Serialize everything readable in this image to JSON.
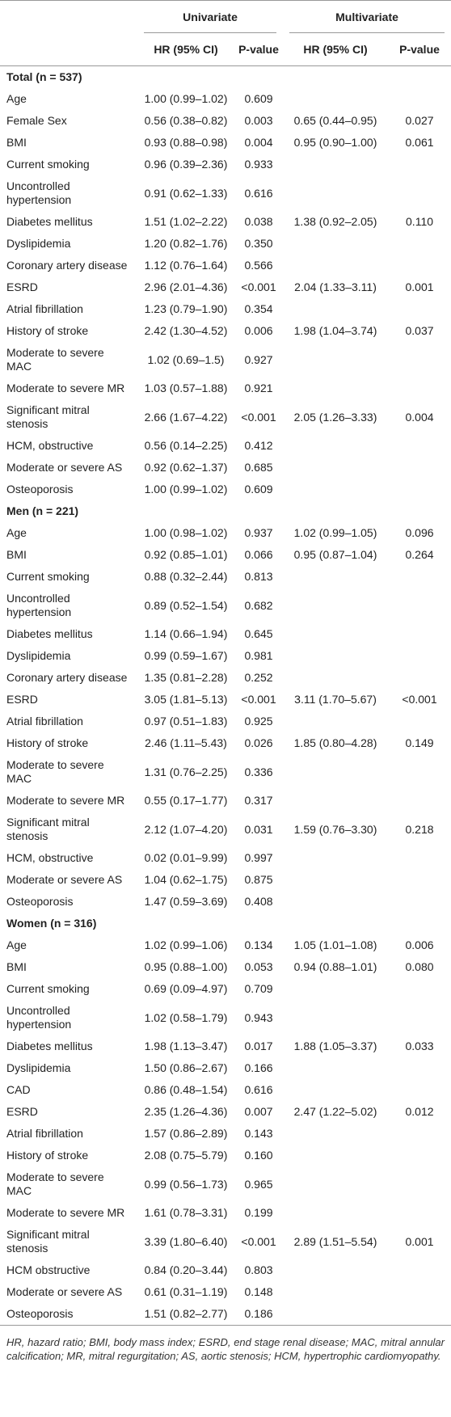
{
  "header": {
    "univariate": "Univariate",
    "multivariate": "Multivariate",
    "columns": [
      "HR (95% CI)",
      "P-value",
      "HR (95% CI)",
      "P-value"
    ]
  },
  "table": {
    "sections": [
      {
        "title": "Total (n = 537)",
        "rows": [
          [
            "Age",
            "1.00 (0.99–1.02)",
            "0.609"
          ],
          [
            "Female Sex",
            "0.56 (0.38–0.82)",
            "0.003",
            "0.65 (0.44–0.95)",
            "0.027"
          ],
          [
            "BMI",
            "0.93 (0.88–0.98)",
            "0.004",
            "0.95 (0.90–1.00)",
            "0.061"
          ],
          [
            "Current smoking",
            "0.96 (0.39–2.36)",
            "0.933"
          ],
          [
            "Uncontrolled hypertension",
            "0.91 (0.62–1.33)",
            "0.616"
          ],
          [
            "Diabetes mellitus",
            "1.51 (1.02–2.22)",
            "0.038",
            "1.38 (0.92–2.05)",
            "0.110"
          ],
          [
            "Dyslipidemia",
            "1.20 (0.82–1.76)",
            "0.350"
          ],
          [
            "Coronary artery disease",
            "1.12 (0.76–1.64)",
            "0.566"
          ],
          [
            "ESRD",
            "2.96 (2.01–4.36)",
            "<0.001",
            "2.04 (1.33–3.11)",
            "0.001"
          ],
          [
            "Atrial fibrillation",
            "1.23 (0.79–1.90)",
            "0.354"
          ],
          [
            "History of stroke",
            "2.42 (1.30–4.52)",
            "0.006",
            "1.98 (1.04–3.74)",
            "0.037"
          ],
          [
            "Moderate to severe MAC",
            "1.02 (0.69–1.5)",
            "0.927"
          ],
          [
            "Moderate to severe MR",
            "1.03 (0.57–1.88)",
            "0.921"
          ],
          [
            "Significant mitral stenosis",
            "2.66 (1.67–4.22)",
            "<0.001",
            "2.05 (1.26–3.33)",
            "0.004"
          ],
          [
            "HCM, obstructive",
            "0.56 (0.14–2.25)",
            "0.412"
          ],
          [
            "Moderate or severe AS",
            "0.92 (0.62–1.37)",
            "0.685"
          ],
          [
            "Osteoporosis",
            "1.00 (0.99–1.02)",
            "0.609"
          ]
        ]
      },
      {
        "title": "Men (n = 221)",
        "rows": [
          [
            "Age",
            "1.00 (0.98–1.02)",
            "0.937",
            "1.02 (0.99–1.05)",
            "0.096"
          ],
          [
            "BMI",
            "0.92 (0.85–1.01)",
            "0.066",
            "0.95 (0.87–1.04)",
            "0.264"
          ],
          [
            "Current smoking",
            "0.88 (0.32–2.44)",
            "0.813"
          ],
          [
            "Uncontrolled hypertension",
            "0.89 (0.52–1.54)",
            "0.682"
          ],
          [
            "Diabetes mellitus",
            "1.14 (0.66–1.94)",
            "0.645"
          ],
          [
            "Dyslipidemia",
            "0.99 (0.59–1.67)",
            "0.981"
          ],
          [
            "Coronary artery disease",
            "1.35 (0.81–2.28)",
            "0.252"
          ],
          [
            "ESRD",
            "3.05 (1.81–5.13)",
            "<0.001",
            "3.11 (1.70–5.67)",
            "<0.001"
          ],
          [
            "Atrial fibrillation",
            "0.97 (0.51–1.83)",
            "0.925"
          ],
          [
            "History of stroke",
            "2.46 (1.11–5.43)",
            "0.026",
            "1.85 (0.80–4.28)",
            "0.149"
          ],
          [
            "Moderate to severe MAC",
            "1.31 (0.76–2.25)",
            "0.336"
          ],
          [
            "Moderate to severe MR",
            "0.55 (0.17–1.77)",
            "0.317"
          ],
          [
            "Significant mitral stenosis",
            "2.12 (1.07–4.20)",
            "0.031",
            "1.59 (0.76–3.30)",
            "0.218"
          ],
          [
            "HCM, obstructive",
            "0.02 (0.01–9.99)",
            "0.997"
          ],
          [
            "Moderate or severe AS",
            "1.04 (0.62–1.75)",
            "0.875"
          ],
          [
            "Osteoporosis",
            "1.47 (0.59–3.69)",
            "0.408"
          ]
        ]
      },
      {
        "title": "Women (n = 316)",
        "rows": [
          [
            "Age",
            "1.02 (0.99–1.06)",
            "0.134",
            "1.05 (1.01–1.08)",
            "0.006"
          ],
          [
            "BMI",
            "0.95 (0.88–1.00)",
            "0.053",
            "0.94 (0.88–1.01)",
            "0.080"
          ],
          [
            "Current smoking",
            "0.69 (0.09–4.97)",
            "0.709"
          ],
          [
            "Uncontrolled hypertension",
            "1.02 (0.58–1.79)",
            "0.943"
          ],
          [
            "Diabetes mellitus",
            "1.98 (1.13–3.47)",
            "0.017",
            "1.88 (1.05–3.37)",
            "0.033"
          ],
          [
            "Dyslipidemia",
            "1.50 (0.86–2.67)",
            "0.166"
          ],
          [
            "CAD",
            "0.86 (0.48–1.54)",
            "0.616"
          ],
          [
            "ESRD",
            "2.35 (1.26–4.36)",
            "0.007",
            "2.47 (1.22–5.02)",
            "0.012"
          ],
          [
            "Atrial fibrillation",
            "1.57 (0.86–2.89)",
            "0.143"
          ],
          [
            "History of stroke",
            "2.08 (0.75–5.79)",
            "0.160"
          ],
          [
            "Moderate to severe MAC",
            "0.99 (0.56–1.73)",
            "0.965"
          ],
          [
            "Moderate to severe MR",
            "1.61 (0.78–3.31)",
            "0.199"
          ],
          [
            "Significant mitral stenosis",
            "3.39 (1.80–6.40)",
            "<0.001",
            "2.89 (1.51–5.54)",
            "0.001"
          ],
          [
            "HCM obstructive",
            "0.84 (0.20–3.44)",
            "0.803"
          ],
          [
            "Moderate or severe AS",
            "0.61 (0.31–1.19)",
            "0.148"
          ],
          [
            "Osteoporosis",
            "1.51 (0.82–2.77)",
            "0.186"
          ]
        ]
      }
    ]
  },
  "footnote": "HR, hazard ratio; BMI, body mass index; ESRD, end stage renal disease; MAC, mitral annular calcification; MR, mitral regurgitation; AS, aortic stenosis; HCM, hypertrophic cardiomyopathy."
}
